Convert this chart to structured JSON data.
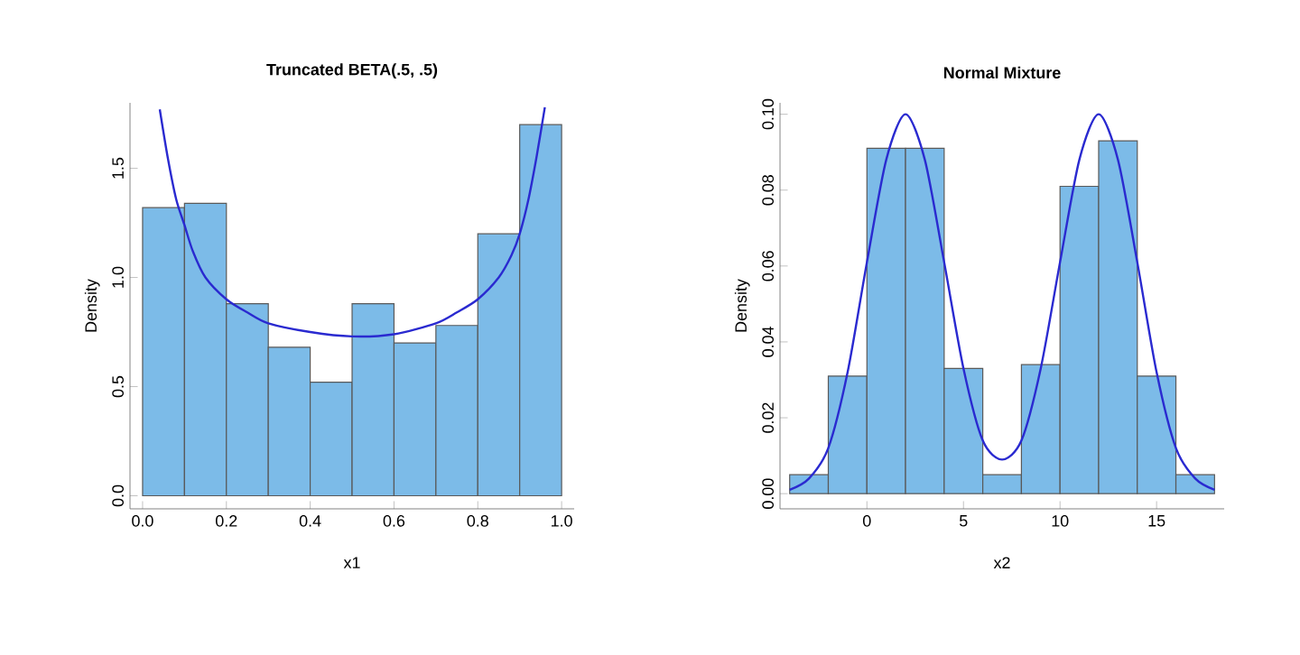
{
  "chart_data": [
    {
      "type": "histogram",
      "title": "Truncated BETA(.5, .5)",
      "xlabel": "x1",
      "ylabel": "Density",
      "color": "#7cbbe8",
      "bins": [
        0,
        0.1,
        0.2,
        0.3,
        0.4,
        0.5,
        0.6,
        0.7,
        0.8,
        0.9,
        1.0
      ],
      "values": [
        1.32,
        1.34,
        0.88,
        0.68,
        0.52,
        0.88,
        0.7,
        0.78,
        1.2,
        1.7
      ],
      "series": [
        {
          "type": "line",
          "color": "#2a2ad0",
          "x": [
            0.041,
            0.06,
            0.08,
            0.1,
            0.12,
            0.15,
            0.2,
            0.25,
            0.3,
            0.4,
            0.5,
            0.6,
            0.7,
            0.75,
            0.8,
            0.85,
            0.88,
            0.9,
            0.92,
            0.94,
            0.96
          ],
          "values": [
            1.77,
            1.55,
            1.36,
            1.24,
            1.12,
            1.0,
            0.9,
            0.84,
            0.79,
            0.75,
            0.73,
            0.74,
            0.79,
            0.84,
            0.9,
            1.0,
            1.1,
            1.2,
            1.35,
            1.55,
            1.78
          ]
        }
      ],
      "xlim": [
        -0.03,
        1.03
      ],
      "ylim": [
        -0.06,
        1.8
      ],
      "xticks": [
        {
          "value": 0,
          "label": "0.0"
        },
        0.2,
        0.4,
        0.6,
        0.8,
        {
          "value": 1,
          "label": "1.0"
        }
      ],
      "yticks": [
        {
          "value": 0,
          "label": "0.0"
        },
        0.5,
        {
          "value": 1,
          "label": "1.0"
        },
        1.5
      ],
      "grid": false
    },
    {
      "type": "histogram",
      "title": "Normal Mixture",
      "xlabel": "x2",
      "ylabel": "Density",
      "color": "#7cbbe8",
      "bins": [
        -4,
        -2,
        0,
        2,
        4,
        6,
        8,
        10,
        12,
        14,
        16,
        18
      ],
      "values": [
        0.005,
        0.031,
        0.091,
        0.091,
        0.033,
        0.005,
        0.034,
        0.081,
        0.093,
        0.031,
        0.005
      ],
      "series": [
        {
          "type": "line",
          "color": "#2a2ad0",
          "x": [
            -4,
            -3,
            -2,
            -1,
            0,
            1,
            2,
            3,
            4,
            5,
            6,
            7,
            8,
            9,
            10,
            11,
            12,
            13,
            14,
            15,
            16,
            17,
            18
          ],
          "values": [
            0.001,
            0.004,
            0.012,
            0.032,
            0.061,
            0.088,
            0.1,
            0.088,
            0.061,
            0.033,
            0.014,
            0.009,
            0.014,
            0.033,
            0.061,
            0.088,
            0.1,
            0.088,
            0.061,
            0.032,
            0.012,
            0.004,
            0.001
          ]
        }
      ],
      "xlim": [
        -4.5,
        18.5
      ],
      "ylim": [
        -0.004,
        0.103
      ],
      "xticks": [
        0,
        5,
        10,
        15
      ],
      "yticks": [
        {
          "value": 0,
          "label": "0.00"
        },
        0.02,
        0.04,
        0.06,
        0.08,
        {
          "value": 0.1,
          "label": "0.10"
        }
      ],
      "grid": false
    }
  ]
}
